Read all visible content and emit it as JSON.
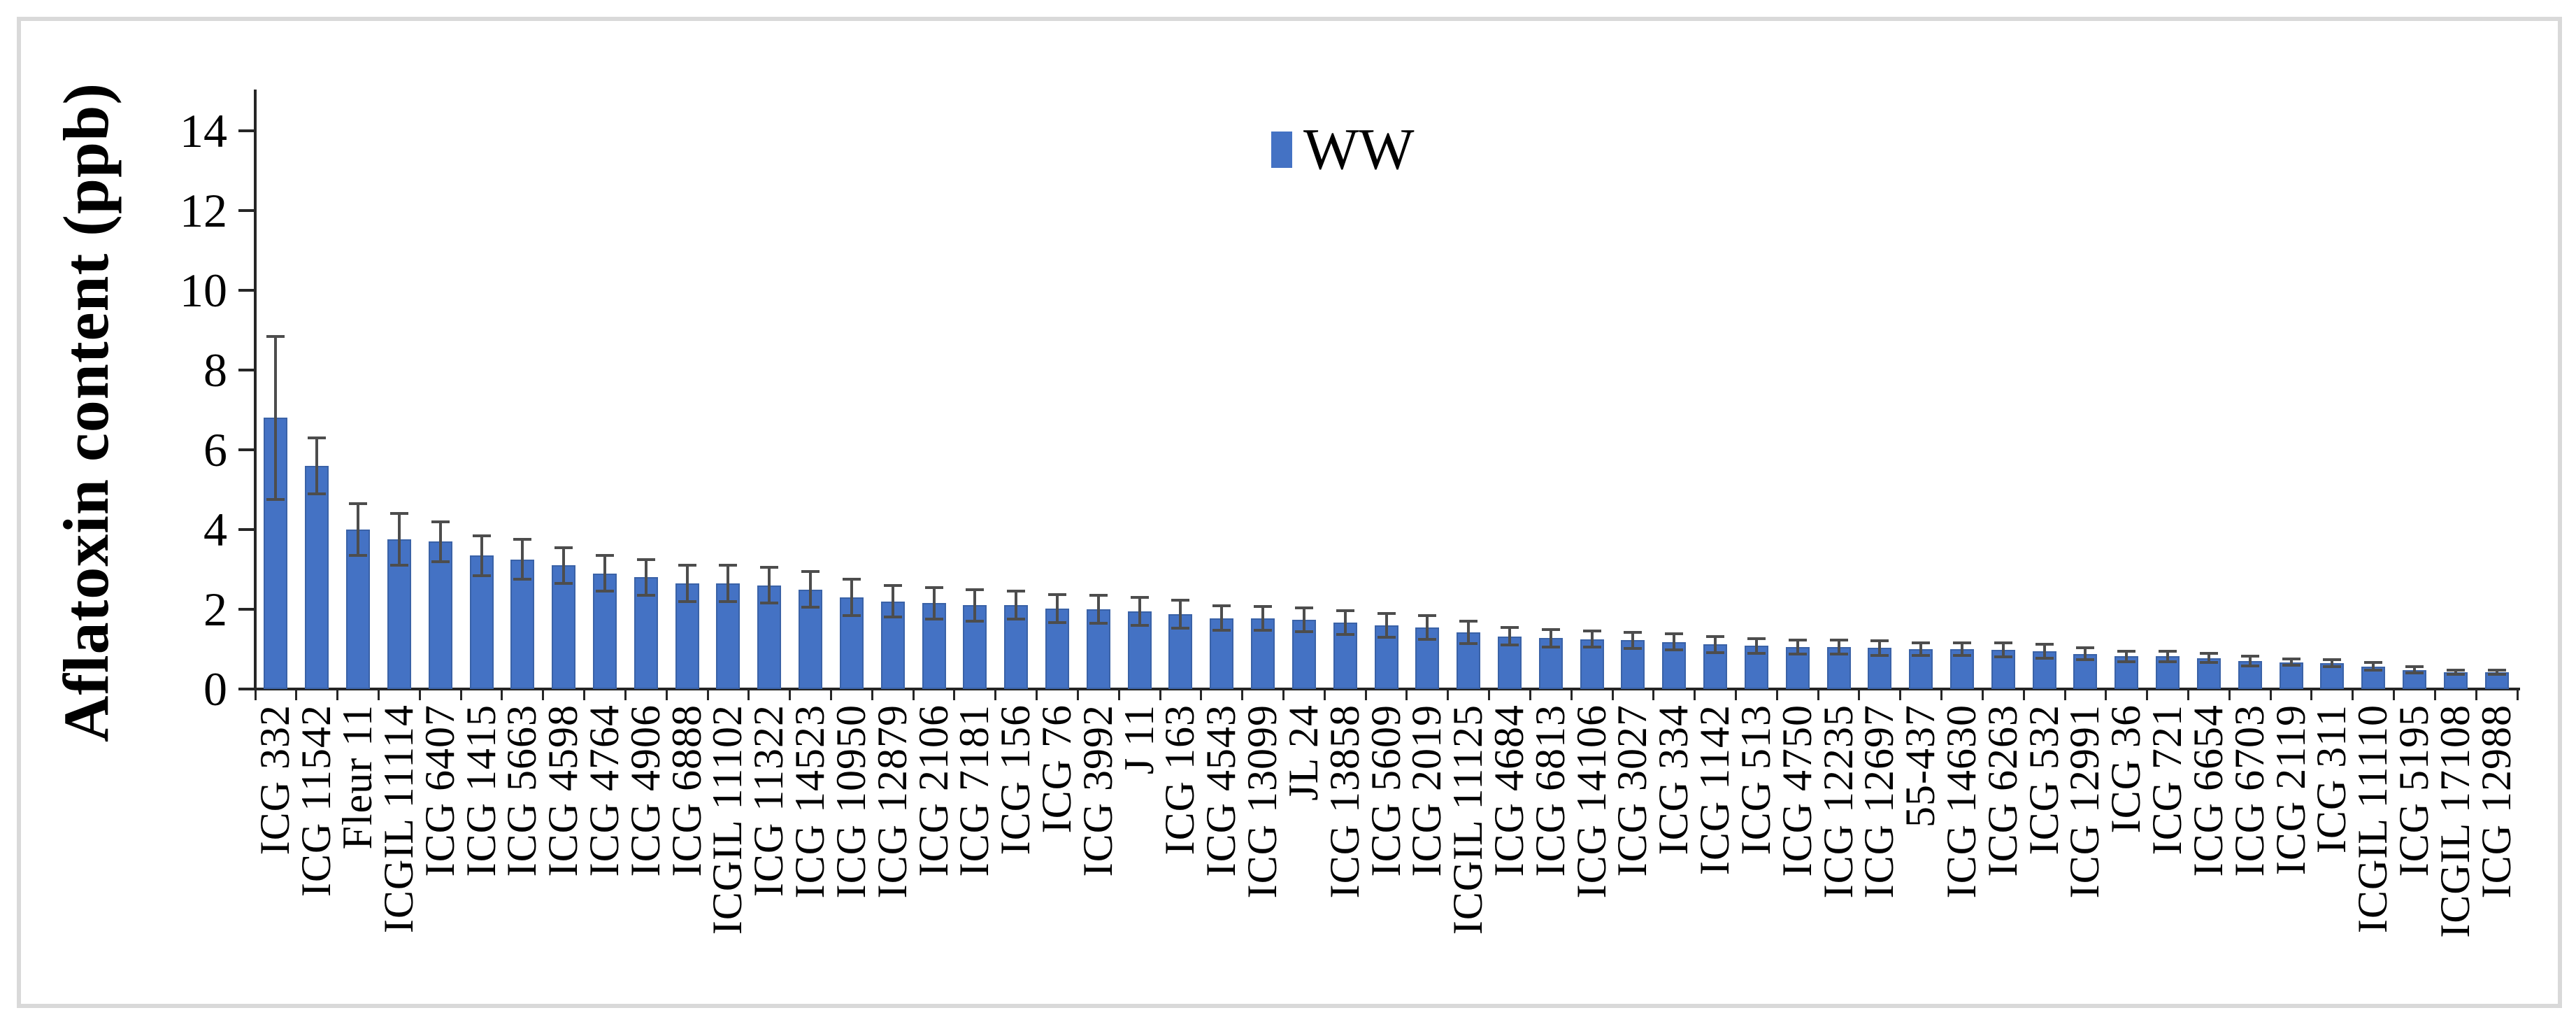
{
  "chart_data": {
    "type": "bar",
    "title": "",
    "xlabel": "",
    "ylabel": "Aflatoxin content (ppb)",
    "ylim": [
      0,
      14
    ],
    "yticks": [
      0,
      2,
      4,
      6,
      8,
      10,
      12,
      14
    ],
    "grid": false,
    "legend": {
      "position": "top-center",
      "entries": [
        "WW"
      ]
    },
    "categories": [
      "ICG 332",
      "ICG 11542",
      "Fleur 11",
      "ICGIL 11114",
      "ICG 6407",
      "ICG 1415",
      "ICG 5663",
      "ICG 4598",
      "ICG 4764",
      "ICG 4906",
      "ICG 6888",
      "ICGIL 11102",
      "ICG 11322",
      "ICG 14523",
      "ICG 10950",
      "ICG 12879",
      "ICG 2106",
      "ICG 7181",
      "ICG 156",
      "ICG 76",
      "ICG 3992",
      "J 11",
      "ICG 163",
      "ICG 4543",
      "ICG 13099",
      "JL 24",
      "ICG 13858",
      "ICG 5609",
      "ICG 2019",
      "ICGIL 11125",
      "ICG 4684",
      "ICG 6813",
      "ICG 14106",
      "ICG 3027",
      "ICG 334",
      "ICG 1142",
      "ICG 513",
      "ICG 4750",
      "ICG 12235",
      "ICG 12697",
      "55-437",
      "ICG 14630",
      "ICG 6263",
      "ICG 532",
      "ICG 12991",
      "ICG 36",
      "ICG 721",
      "ICG 6654",
      "ICG 6703",
      "ICG 2119",
      "ICG 311",
      "ICGIL 11110",
      "ICG 5195",
      "ICGIL 17108",
      "ICG 12988"
    ],
    "series": [
      {
        "name": "WW",
        "values": [
          6.8,
          5.6,
          4.0,
          3.75,
          3.7,
          3.35,
          3.25,
          3.1,
          2.9,
          2.8,
          2.65,
          2.65,
          2.6,
          2.5,
          2.3,
          2.2,
          2.15,
          2.1,
          2.1,
          2.02,
          2.0,
          1.95,
          1.88,
          1.78,
          1.77,
          1.74,
          1.67,
          1.6,
          1.54,
          1.42,
          1.32,
          1.28,
          1.25,
          1.22,
          1.18,
          1.12,
          1.08,
          1.05,
          1.05,
          1.03,
          1.0,
          1.0,
          0.98,
          0.95,
          0.88,
          0.82,
          0.82,
          0.78,
          0.7,
          0.67,
          0.65,
          0.57,
          0.48,
          0.42,
          0.42
        ],
        "errors": [
          2.05,
          0.7,
          0.65,
          0.65,
          0.5,
          0.5,
          0.5,
          0.45,
          0.45,
          0.45,
          0.45,
          0.45,
          0.45,
          0.45,
          0.45,
          0.4,
          0.4,
          0.4,
          0.35,
          0.35,
          0.35,
          0.35,
          0.35,
          0.3,
          0.3,
          0.3,
          0.3,
          0.3,
          0.3,
          0.28,
          0.22,
          0.22,
          0.2,
          0.2,
          0.2,
          0.2,
          0.18,
          0.18,
          0.18,
          0.18,
          0.16,
          0.16,
          0.18,
          0.18,
          0.15,
          0.13,
          0.13,
          0.12,
          0.12,
          0.08,
          0.08,
          0.1,
          0.08,
          0.05,
          0.05
        ]
      }
    ],
    "colors": {
      "bar": "#4472C4",
      "bar_border": "#3A62A7",
      "error_bar": "#4D4D4D",
      "axis": "#262626",
      "text": "#000000",
      "frame_border": "#D9D9D9",
      "background": "#FFFFFF"
    }
  }
}
